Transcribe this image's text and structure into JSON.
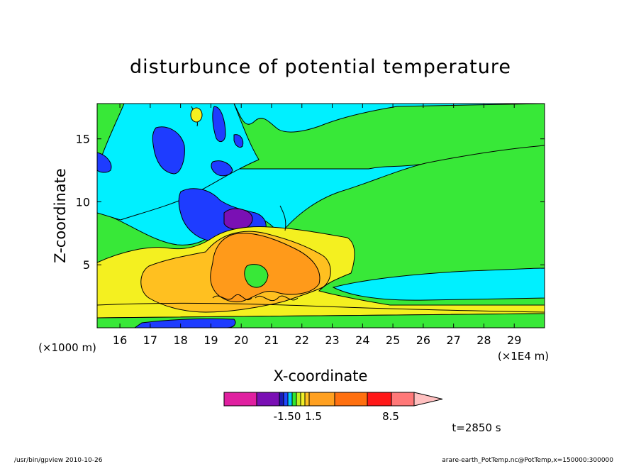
{
  "chart_data": {
    "type": "heatmap",
    "title": "disturbunce of potential temperature",
    "xlabel": "X-coordinate",
    "ylabel": "Z-coordinate",
    "x_unit_note": "(×1E4 m)",
    "y_unit_note": "(×1000 m)",
    "xlim": [
      15.25,
      30.0
    ],
    "ylim": [
      0.0,
      17.8
    ],
    "x_ticks": [
      16,
      17,
      18,
      19,
      20,
      21,
      22,
      23,
      24,
      25,
      26,
      27,
      28,
      29
    ],
    "x_tick_labels": [
      "16",
      "17",
      "18",
      "19",
      "20",
      "21",
      "22",
      "23",
      "24",
      "25",
      "26",
      "27",
      "28",
      "29"
    ],
    "y_ticks": [
      5,
      10,
      15
    ],
    "y_tick_labels": [
      "5",
      "10",
      "15"
    ],
    "colorbar": {
      "colors": [
        "#e020a0",
        "#7a0fb4",
        "#1a1ab4",
        "#2048ff",
        "#00c8ff",
        "#30e830",
        "#c0f020",
        "#f0f028",
        "#ffc020",
        "#ffa020",
        "#ff7010",
        "#ff1818",
        "#ff7878",
        "#ffc0c0"
      ],
      "labels": [
        "-1.50",
        "1.5",
        "8.5"
      ]
    },
    "time_label": "t=2850 s",
    "regions": [
      {
        "level": "cyan",
        "desc": "background upper atmosphere"
      },
      {
        "level": "green",
        "desc": "right side and lower layers"
      },
      {
        "level": "blue",
        "desc": "negative anomalies above bubble"
      },
      {
        "level": "purple",
        "desc": "strongest negative near z≈9"
      },
      {
        "level": "yellow",
        "desc": "warm band z 1–7"
      },
      {
        "level": "orange",
        "desc": "warm bubble x 19–22, z 2–7"
      }
    ]
  },
  "footer": {
    "left": "/usr/bin/gpview   2010-10-26",
    "right": "arare-earth_PotTemp.nc@PotTemp,x=150000:300000"
  }
}
